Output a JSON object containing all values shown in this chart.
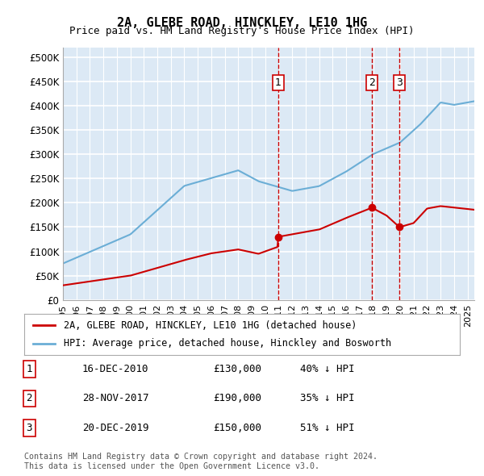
{
  "title": "2A, GLEBE ROAD, HINCKLEY, LE10 1HG",
  "subtitle": "Price paid vs. HM Land Registry's House Price Index (HPI)",
  "ylabel_ticks": [
    "£0",
    "£50K",
    "£100K",
    "£150K",
    "£200K",
    "£250K",
    "£300K",
    "£350K",
    "£400K",
    "£450K",
    "£500K"
  ],
  "ytick_values": [
    0,
    50000,
    100000,
    150000,
    200000,
    250000,
    300000,
    350000,
    400000,
    450000,
    500000
  ],
  "ylim": [
    0,
    520000
  ],
  "xlim_start": 1995.0,
  "xlim_end": 2025.5,
  "plot_bg_color": "#dce9f5",
  "grid_color": "#ffffff",
  "hpi_color": "#6baed6",
  "price_color": "#cc0000",
  "vline_color": "#cc0000",
  "transactions": [
    {
      "label": "1",
      "date": 2010.96,
      "price": 130000,
      "note": "16-DEC-2010",
      "price_str": "£130,000",
      "hpi_note": "40% ↓ HPI"
    },
    {
      "label": "2",
      "date": 2017.91,
      "price": 190000,
      "note": "28-NOV-2017",
      "price_str": "£190,000",
      "hpi_note": "35% ↓ HPI"
    },
    {
      "label": "3",
      "date": 2019.96,
      "price": 150000,
      "note": "20-DEC-2019",
      "price_str": "£150,000",
      "hpi_note": "51% ↓ HPI"
    }
  ],
  "legend_entries": [
    {
      "label": "2A, GLEBE ROAD, HINCKLEY, LE10 1HG (detached house)",
      "color": "#cc0000"
    },
    {
      "label": "HPI: Average price, detached house, Hinckley and Bosworth",
      "color": "#6baed6"
    }
  ],
  "footnote": "Contains HM Land Registry data © Crown copyright and database right 2024.\nThis data is licensed under the Open Government Licence v3.0.",
  "xtick_years": [
    1995,
    1996,
    1997,
    1998,
    1999,
    2000,
    2001,
    2002,
    2003,
    2004,
    2005,
    2006,
    2007,
    2008,
    2009,
    2010,
    2011,
    2012,
    2013,
    2014,
    2015,
    2016,
    2017,
    2018,
    2019,
    2020,
    2021,
    2022,
    2023,
    2024,
    2025
  ]
}
